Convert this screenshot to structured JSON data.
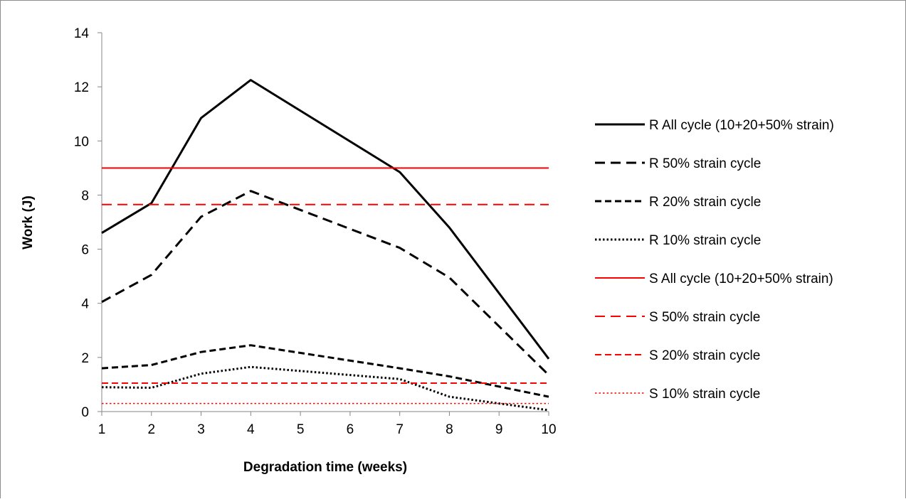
{
  "chart_data": {
    "type": "line",
    "xlabel": "Degradation time (weeks)",
    "ylabel": "Work (J)",
    "x": [
      1,
      2,
      3,
      4,
      5,
      6,
      7,
      8,
      9,
      10
    ],
    "xlim": [
      1,
      10
    ],
    "ylim": [
      0,
      14
    ],
    "xticks": [
      "1",
      "2",
      "3",
      "4",
      "5",
      "6",
      "7",
      "8",
      "9",
      "10"
    ],
    "yticks": [
      "0",
      "2",
      "4",
      "6",
      "8",
      "10",
      "12",
      "14"
    ],
    "grid": false,
    "legend_position": "right",
    "series": [
      {
        "name": "R All cycle (10+20+50% strain)",
        "color": "#000000",
        "style": "solid",
        "width": 3,
        "points": [
          [
            1,
            6.6
          ],
          [
            2,
            7.7
          ],
          [
            3,
            10.85
          ],
          [
            4,
            12.25
          ],
          [
            7,
            8.85
          ],
          [
            8,
            6.8
          ],
          [
            10,
            1.95
          ]
        ]
      },
      {
        "name": "R 50% strain cycle",
        "color": "#000000",
        "style": "long-dash",
        "width": 3,
        "points": [
          [
            1,
            4.05
          ],
          [
            2,
            5.05
          ],
          [
            3,
            7.2
          ],
          [
            4,
            8.15
          ],
          [
            7,
            6.05
          ],
          [
            8,
            4.95
          ],
          [
            10,
            1.35
          ]
        ]
      },
      {
        "name": "R 20% strain cycle",
        "color": "#000000",
        "style": "dash",
        "width": 3,
        "points": [
          [
            1,
            1.6
          ],
          [
            2,
            1.72
          ],
          [
            3,
            2.2
          ],
          [
            4,
            2.45
          ],
          [
            7,
            1.6
          ],
          [
            8,
            1.3
          ],
          [
            10,
            0.55
          ]
        ]
      },
      {
        "name": "R 10% strain cycle",
        "color": "#000000",
        "style": "dot",
        "width": 3,
        "points": [
          [
            1,
            0.9
          ],
          [
            2,
            0.88
          ],
          [
            3,
            1.4
          ],
          [
            4,
            1.65
          ],
          [
            7,
            1.2
          ],
          [
            8,
            0.55
          ],
          [
            9,
            0.3
          ],
          [
            10,
            0.05
          ]
        ]
      },
      {
        "name": "S All cycle (10+20+50% strain)",
        "color": "#ff0000",
        "style": "solid",
        "width": 2,
        "points": [
          [
            1,
            9.0
          ],
          [
            10,
            9.0
          ]
        ]
      },
      {
        "name": "S 50% strain cycle",
        "color": "#ff0000",
        "style": "long-dash",
        "width": 2,
        "points": [
          [
            1,
            7.65
          ],
          [
            10,
            7.65
          ]
        ]
      },
      {
        "name": "S 20% strain cycle",
        "color": "#ff0000",
        "style": "dash",
        "width": 2,
        "points": [
          [
            1,
            1.05
          ],
          [
            10,
            1.05
          ]
        ]
      },
      {
        "name": "S 10% strain cycle",
        "color": "#ff0000",
        "style": "dot",
        "width": 1.5,
        "points": [
          [
            1,
            0.3
          ],
          [
            10,
            0.3
          ]
        ]
      }
    ]
  }
}
